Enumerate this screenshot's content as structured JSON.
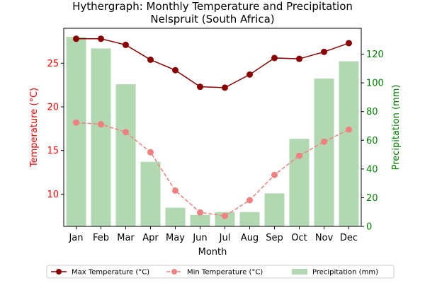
{
  "chart_data": {
    "type": "bar",
    "title_line1": "Hythergraph: Monthly Temperature and Precipitation",
    "title_line2": "Nelspruit (South Africa)",
    "xlabel": "Month",
    "ylabel_left": "Temperature (°C)",
    "ylabel_right": "Precipitation (mm)",
    "categories": [
      "Jan",
      "Feb",
      "Mar",
      "Apr",
      "May",
      "Jun",
      "Jul",
      "Aug",
      "Sep",
      "Oct",
      "Nov",
      "Dec"
    ],
    "ylim_left": [
      6.3,
      29.0
    ],
    "yticks_left": [
      10,
      15,
      20,
      25
    ],
    "ylim_right": [
      0,
      138
    ],
    "yticks_right": [
      0,
      20,
      40,
      60,
      80,
      100,
      120
    ],
    "series": [
      {
        "name": "Max Temperature (°C)",
        "kind": "line",
        "axis": "left",
        "color": "#8b0000",
        "dash": "solid",
        "values": [
          27.8,
          27.8,
          27.1,
          25.4,
          24.2,
          22.3,
          22.2,
          23.7,
          25.6,
          25.5,
          26.3,
          27.3
        ]
      },
      {
        "name": "Min Temperature (°C)",
        "kind": "line",
        "axis": "left",
        "color": "#f08080",
        "dash": "dashed",
        "values": [
          18.2,
          18.0,
          17.1,
          14.8,
          10.4,
          7.9,
          7.5,
          9.3,
          12.2,
          14.4,
          16.0,
          17.4
        ]
      },
      {
        "name": "Precipitation (mm)",
        "kind": "bar",
        "axis": "right",
        "color": "#b2d8b2",
        "values": [
          132,
          124,
          99,
          45,
          13,
          8,
          10,
          10,
          23,
          61,
          103,
          115
        ]
      }
    ],
    "legend_position": "bottom-center",
    "grid": false,
    "colors": {
      "left_axis": "#ff0000",
      "right_axis": "#008000",
      "max_temp": "#8b0000",
      "min_temp": "#f08080",
      "precip": "#b2d8b2"
    }
  }
}
